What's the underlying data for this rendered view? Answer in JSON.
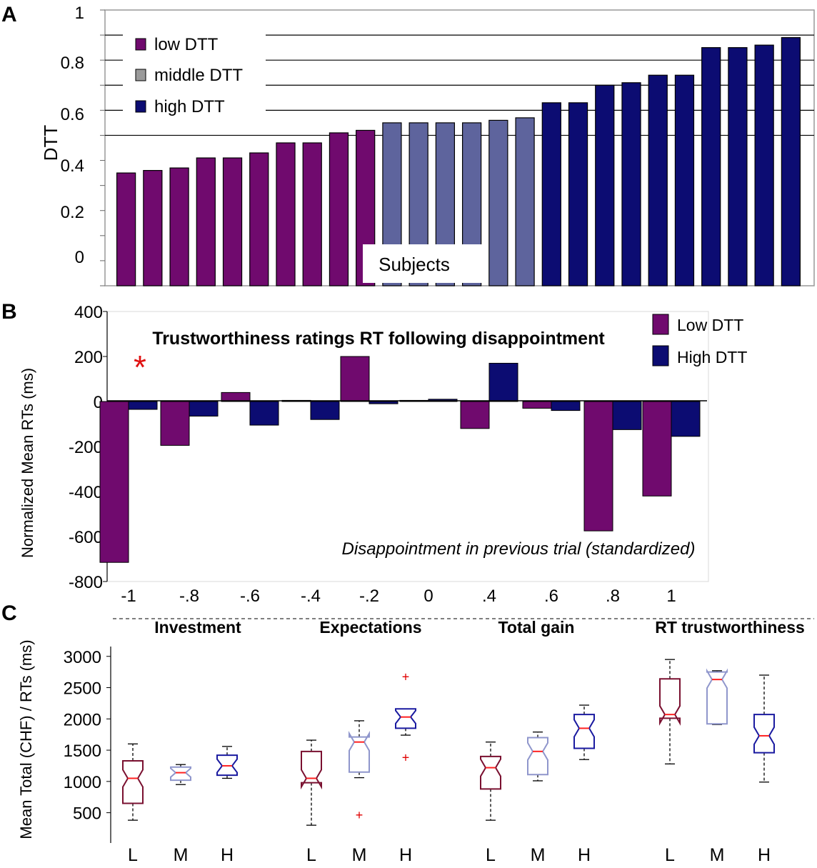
{
  "chart_data": [
    {
      "panel": "A",
      "type": "bar",
      "ylabel": "DTT",
      "xlabel": "Subjects",
      "ylim": [
        -0.1,
        1
      ],
      "yticks": [
        "1",
        "0.8",
        "0.6",
        "0.4",
        "0.2",
        "0"
      ],
      "legend": [
        "low DTT",
        "middle DTT",
        "high DTT"
      ],
      "colors": {
        "low": "#700a6e",
        "middle": "#5e649d",
        "high": "#0c0c72"
      },
      "values": [
        0.35,
        0.36,
        0.37,
        0.41,
        0.41,
        0.43,
        0.47,
        0.47,
        0.51,
        0.52,
        0.55,
        0.55,
        0.55,
        0.55,
        0.56,
        0.57,
        0.63,
        0.63,
        0.7,
        0.71,
        0.74,
        0.74,
        0.85,
        0.85,
        0.86,
        0.89
      ],
      "groups": [
        "low",
        "low",
        "low",
        "low",
        "low",
        "low",
        "low",
        "low",
        "low",
        "low",
        "middle",
        "middle",
        "middle",
        "middle",
        "middle",
        "middle",
        "high",
        "high",
        "high",
        "high",
        "high",
        "high",
        "high",
        "high",
        "high",
        "high"
      ]
    },
    {
      "panel": "B",
      "type": "bar",
      "title": "Trustworthiness ratings RT following disappointment",
      "ylabel": "Normalized Mean RTs (ms)",
      "xlabel": "Disappointment in previous trial (standardized)",
      "ylim": [
        -800,
        400
      ],
      "yticks": [
        "400",
        "200",
        "0",
        "-200",
        "-400",
        "-600",
        "-800"
      ],
      "categories": [
        "-1",
        "-.8",
        "-.6",
        "-.4",
        "-.2",
        "0",
        ".4",
        ".6",
        ".8",
        "1"
      ],
      "series": [
        {
          "name": "Low DTT",
          "color": "#700a6e",
          "values": [
            -715,
            -195,
            40,
            5,
            200,
            5,
            -120,
            -30,
            -575,
            -420
          ]
        },
        {
          "name": "High DTT",
          "color": "#0c0c72",
          "values": [
            -35,
            -65,
            -105,
            -80,
            -10,
            10,
            170,
            -40,
            -125,
            -155
          ]
        }
      ],
      "significance_marker": "*"
    },
    {
      "panel": "C",
      "type": "boxplot",
      "ylabel": "Mean Total (CHF) / RTs (ms)",
      "ylim": [
        50,
        3100
      ],
      "yticks": [
        "3000",
        "2500",
        "2000",
        "1500",
        "1000",
        "500"
      ],
      "groups": [
        {
          "name": "Investment",
          "boxes": [
            {
              "label": "L",
              "color": "#7a1030",
              "whisker_low": 380,
              "q1": 650,
              "median": 1050,
              "q3": 1330,
              "whisker_high": 1600,
              "outliers": []
            },
            {
              "label": "M",
              "color": "#8f96cc",
              "whisker_low": 950,
              "q1": 1020,
              "median": 1140,
              "q3": 1230,
              "whisker_high": 1270,
              "outliers": []
            },
            {
              "label": "H",
              "color": "#1a1aa0",
              "whisker_low": 1050,
              "q1": 1100,
              "median": 1250,
              "q3": 1420,
              "whisker_high": 1560,
              "outliers": []
            }
          ]
        },
        {
          "name": "Expectations",
          "boxes": [
            {
              "label": "L",
              "color": "#7a1030",
              "whisker_low": 300,
              "q1": 980,
              "median": 1050,
              "q3": 1480,
              "whisker_high": 1660,
              "outliers": []
            },
            {
              "label": "M",
              "color": "#8f96cc",
              "whisker_low": 1060,
              "q1": 1150,
              "median": 1630,
              "q3": 1710,
              "whisker_high": 1970,
              "outliers": [
                460
              ]
            },
            {
              "label": "H",
              "color": "#1a1aa0",
              "whisker_low": 1740,
              "q1": 1850,
              "median": 2030,
              "q3": 2160,
              "whisker_high": 2160,
              "outliers": [
                1380,
                2670
              ]
            }
          ]
        },
        {
          "name": "Total gain",
          "boxes": [
            {
              "label": "L",
              "color": "#7a1030",
              "whisker_low": 380,
              "q1": 880,
              "median": 1220,
              "q3": 1400,
              "whisker_high": 1630,
              "outliers": []
            },
            {
              "label": "M",
              "color": "#8f96cc",
              "whisker_low": 1010,
              "q1": 1110,
              "median": 1480,
              "q3": 1700,
              "whisker_high": 1790,
              "outliers": []
            },
            {
              "label": "H",
              "color": "#1a1aa0",
              "whisker_low": 1350,
              "q1": 1530,
              "median": 1850,
              "q3": 2070,
              "whisker_high": 2220,
              "outliers": []
            }
          ]
        },
        {
          "name": "RT trustworthiness",
          "boxes": [
            {
              "label": "L",
              "color": "#7a1030",
              "whisker_low": 1280,
              "q1": 2010,
              "median": 2070,
              "q3": 2640,
              "whisker_high": 2950,
              "outliers": []
            },
            {
              "label": "M",
              "color": "#8f96cc",
              "whisker_low": 1910,
              "q1": 1920,
              "median": 2630,
              "q3": 2750,
              "whisker_high": 2770,
              "outliers": []
            },
            {
              "label": "H",
              "color": "#1a1aa0",
              "whisker_low": 990,
              "q1": 1460,
              "median": 1730,
              "q3": 2070,
              "whisker_high": 2700,
              "outliers": []
            }
          ]
        }
      ]
    }
  ],
  "panels": {
    "a": "A",
    "b": "B",
    "c": "C"
  }
}
